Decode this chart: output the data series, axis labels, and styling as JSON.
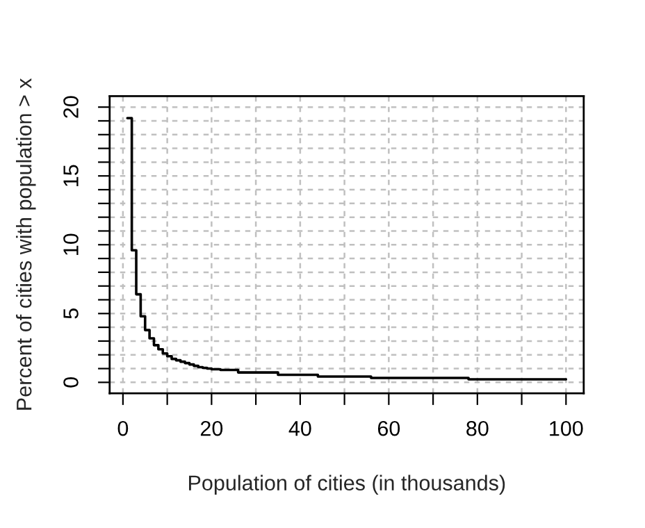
{
  "chart_data": {
    "type": "step",
    "xlabel": "Population of cities (in thousands)",
    "ylabel": "Percent of cities with population > x",
    "x": [
      1,
      2,
      3,
      4,
      5,
      6,
      7,
      8,
      9,
      10,
      11,
      12,
      13,
      14,
      15,
      16,
      17,
      18,
      19,
      20,
      22,
      26,
      35,
      44,
      56,
      78,
      100
    ],
    "series": [
      {
        "color": "#000000",
        "values": [
          19.2,
          9.6,
          6.4,
          4.8,
          3.8,
          3.2,
          2.7,
          2.4,
          2.1,
          1.9,
          1.7,
          1.6,
          1.5,
          1.4,
          1.3,
          1.2,
          1.1,
          1.05,
          1.0,
          0.95,
          0.9,
          0.72,
          0.55,
          0.42,
          0.32,
          0.22,
          0.22
        ]
      }
    ],
    "xlim": [
      -3,
      104
    ],
    "ylim": [
      -0.8,
      20.8
    ],
    "xticks": [
      0,
      {
        "value": 10,
        "label": null
      },
      20,
      {
        "value": 30,
        "label": null
      },
      40,
      {
        "value": 50,
        "label": null
      },
      60,
      {
        "value": 70,
        "label": null
      },
      80,
      {
        "value": 90,
        "label": null
      },
      100
    ],
    "yticks": [
      0,
      {
        "value": 1,
        "label": null
      },
      {
        "value": 2,
        "label": null
      },
      {
        "value": 3,
        "label": null
      },
      {
        "value": 4,
        "label": null
      },
      5,
      {
        "value": 6,
        "label": null
      },
      {
        "value": 7,
        "label": null
      },
      {
        "value": 8,
        "label": null
      },
      {
        "value": 9,
        "label": null
      },
      10,
      {
        "value": 11,
        "label": null
      },
      {
        "value": 12,
        "label": null
      },
      {
        "value": 13,
        "label": null
      },
      {
        "value": 14,
        "label": null
      },
      15,
      {
        "value": 16,
        "label": null
      },
      {
        "value": 17,
        "label": null
      },
      {
        "value": 18,
        "label": null
      },
      {
        "value": 19,
        "label": null
      },
      20
    ],
    "grid": true,
    "marker": "none",
    "line_style": "solid"
  }
}
